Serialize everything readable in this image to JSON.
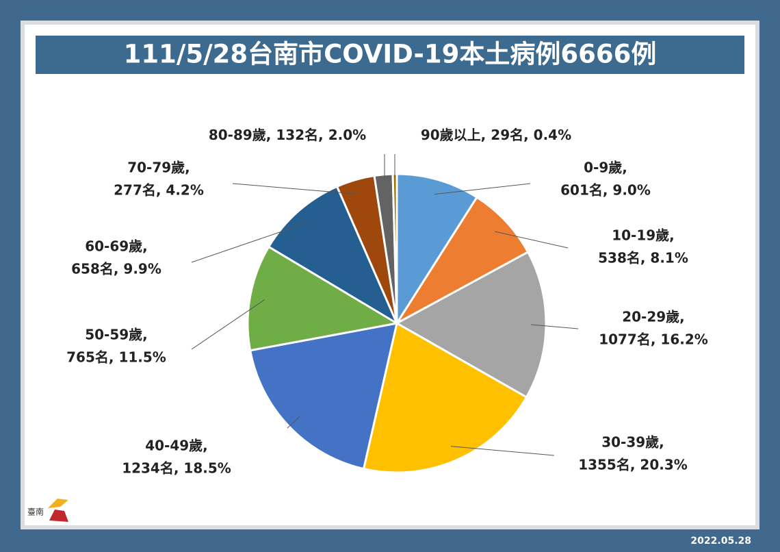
{
  "chart_data": {
    "type": "pie",
    "title": "111/5/28台南市COVID-19本土病例6666例",
    "categories": [
      "0-9歲,",
      "10-19歲,",
      "20-29歲,",
      "30-39歲,",
      "40-49歲,",
      "50-59歲,",
      "60-69歲,",
      "70-79歲,",
      "80-89歲,",
      "90歲以上,"
    ],
    "values": [
      601,
      538,
      1077,
      1355,
      1234,
      765,
      658,
      277,
      132,
      29
    ],
    "value_labels": [
      "601名, 9.0%",
      "538名, 8.1%",
      "1077名, 16.2%",
      "1355名, 20.3%",
      "1234名, 18.5%",
      "765名, 11.5%",
      "658名, 9.9%",
      "277名, 4.2%",
      "132名, 2.0%",
      "29名, 0.4%"
    ],
    "colors": [
      "#5b9bd5",
      "#ed7d31",
      "#a5a5a5",
      "#ffc000",
      "#4472c4",
      "#70ad47",
      "#255e91",
      "#9e480e",
      "#636363",
      "#997300"
    ],
    "date": "2022.05.28",
    "logo": "臺南"
  }
}
